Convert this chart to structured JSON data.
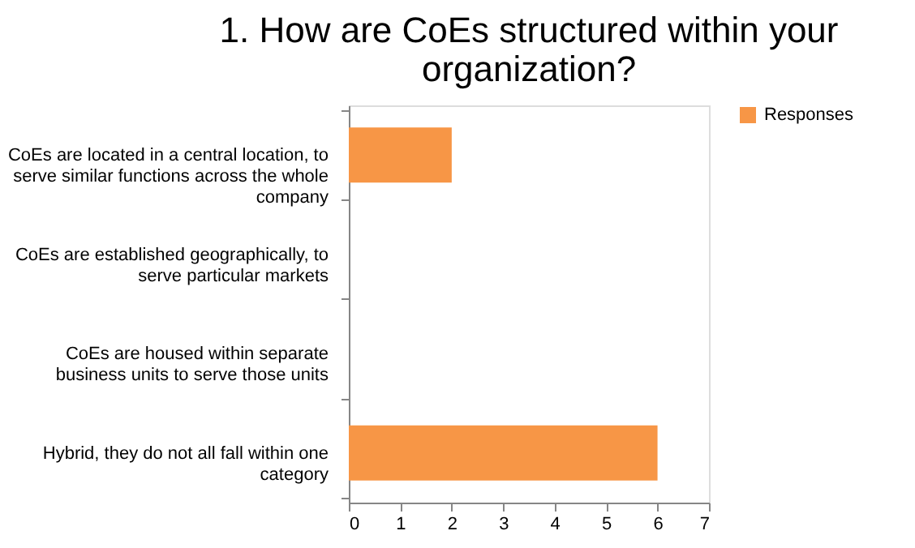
{
  "chart_data": {
    "type": "bar",
    "orientation": "horizontal",
    "title": "1. How are CoEs structured within your\norganization?",
    "categories": [
      "CoEs are located in a central location, to\nserve similar functions across the whole\ncompany",
      "CoEs are established geographically, to\nserve particular markets",
      "CoEs are housed within separate\nbusiness units to serve those units",
      "Hybrid, they do not all fall within one\ncategory"
    ],
    "series": [
      {
        "name": "Responses",
        "color": "#f79646",
        "values": [
          2,
          0,
          0,
          6
        ]
      }
    ],
    "xlim": [
      0,
      7
    ],
    "xticks": [
      0,
      1,
      2,
      3,
      4,
      5,
      6,
      7
    ],
    "grid": false,
    "legend": "right"
  }
}
